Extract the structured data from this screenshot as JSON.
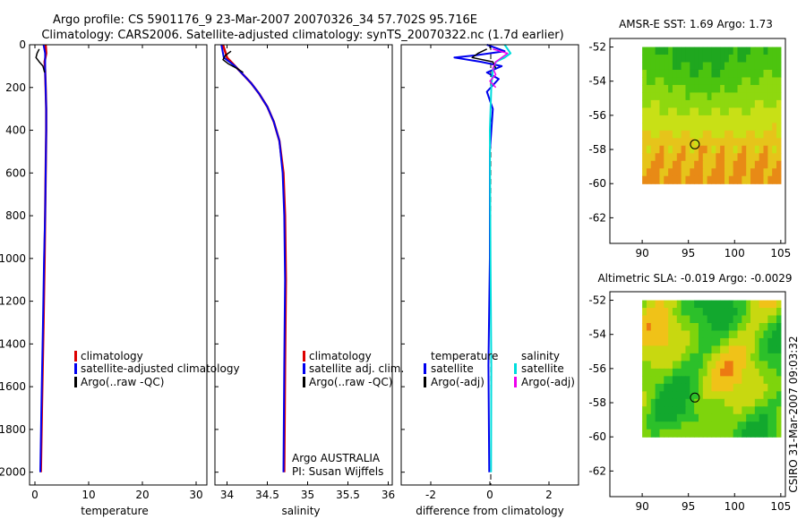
{
  "header": {
    "title_line1": "Argo profile: CS 5901176_9 23-Mar-2007 20070326_34 57.702S 95.716E",
    "title_line2": "Climatology: CARS2006. Satellite-adjusted climatology: synTS_20070322.nc (1.7d earlier)"
  },
  "chart_data": [
    {
      "id": "temperature",
      "type": "line",
      "xlabel": "temperature",
      "ylabel": "",
      "xlim": [
        -1,
        32
      ],
      "ylim": [
        2060,
        0
      ],
      "xticks": [
        0,
        10,
        20,
        30
      ],
      "yticks": [
        0,
        200,
        400,
        600,
        800,
        1000,
        1200,
        1400,
        1600,
        1800,
        2000
      ],
      "legend": [
        "climatology",
        "satellite-adjusted climatology",
        "Argo(..raw -QC)"
      ],
      "legend_colors": [
        "#dd0000",
        "#0000ee",
        "#000000"
      ],
      "series": [
        {
          "name": "climatology",
          "color": "#dd0000",
          "width": 2.5,
          "x": [
            2.0,
            2.1,
            1.8,
            1.9,
            2.0,
            2.1,
            2.1,
            2.0,
            1.9,
            1.8,
            1.6,
            1.3,
            1.1
          ],
          "y": [
            0,
            40,
            80,
            120,
            200,
            300,
            400,
            600,
            800,
            1000,
            1300,
            1700,
            2000
          ]
        },
        {
          "name": "satellite-adjusted climatology",
          "color": "#0000ee",
          "width": 2,
          "x": [
            1.6,
            1.9,
            1.9,
            1.9,
            2.0,
            2.1,
            2.1,
            2.0,
            1.9,
            1.7,
            1.5,
            1.2,
            1.0
          ],
          "y": [
            0,
            40,
            80,
            120,
            200,
            300,
            400,
            600,
            800,
            1000,
            1300,
            1700,
            2000
          ]
        },
        {
          "name": "Argo(..raw -QC)",
          "color": "#000000",
          "width": 1.5,
          "x": [
            0.8,
            0.4,
            0.2,
            0.8,
            1.5,
            1.8
          ],
          "y": [
            20,
            40,
            60,
            80,
            100,
            130
          ]
        }
      ]
    },
    {
      "id": "salinity",
      "type": "line",
      "xlabel": "salinity",
      "ylabel": "",
      "xlim": [
        33.85,
        36.05
      ],
      "ylim": [
        2060,
        0
      ],
      "xticks": [
        34,
        34.5,
        35,
        35.5,
        36
      ],
      "legend": [
        "climatology",
        "satellite adj. clim.",
        "Argo(..raw -QC)"
      ],
      "legend_colors": [
        "#dd0000",
        "#0000ee",
        "#000000"
      ],
      "annotations": [
        "Argo AUSTRALIA",
        "PI: Susan Wijffels"
      ],
      "series": [
        {
          "name": "climatology",
          "color": "#dd0000",
          "width": 2.5,
          "x": [
            33.95,
            34.0,
            34.1,
            34.2,
            34.3,
            34.4,
            34.5,
            34.58,
            34.65,
            34.7,
            34.72,
            34.73,
            34.72,
            34.71
          ],
          "y": [
            0,
            60,
            100,
            140,
            180,
            230,
            290,
            360,
            450,
            600,
            800,
            1100,
            1500,
            2000
          ]
        },
        {
          "name": "satellite adj. clim.",
          "color": "#0000ee",
          "width": 2,
          "x": [
            33.93,
            33.96,
            34.1,
            34.2,
            34.3,
            34.4,
            34.5,
            34.58,
            34.65,
            34.69,
            34.71,
            34.72,
            34.71,
            34.7
          ],
          "y": [
            0,
            60,
            100,
            140,
            180,
            230,
            290,
            360,
            450,
            600,
            800,
            1100,
            1500,
            2000
          ]
        },
        {
          "name": "Argo(..raw -QC)",
          "color": "#000000",
          "width": 1.5,
          "x": [
            34.05,
            33.98,
            33.95,
            34.02,
            34.12,
            34.2
          ],
          "y": [
            30,
            50,
            70,
            90,
            110,
            130
          ]
        }
      ]
    },
    {
      "id": "difference",
      "type": "line",
      "xlabel": "difference from climatology",
      "ylabel": "",
      "xlim": [
        -3.0,
        3.0
      ],
      "ylim": [
        2060,
        0
      ],
      "xticks": [
        -2,
        0,
        2
      ],
      "legend_left_title": "temperature",
      "legend_right_title": "salinity",
      "legend_left": [
        "satellite",
        "Argo(-adj)"
      ],
      "legend_left_colors": [
        "#0000ee",
        "#000000"
      ],
      "legend_right": [
        "satellite",
        "Argo(-adj)"
      ],
      "legend_right_colors": [
        "#00dddd",
        "#ee00ee"
      ],
      "series": [
        {
          "name": "temperature satellite",
          "color": "#0000ee",
          "width": 2,
          "x": [
            -0.1,
            0.5,
            -0.5,
            -1.2,
            -0.3,
            0.4,
            -0.1,
            0.3,
            -0.1,
            0.1,
            0.0,
            0.0,
            -0.05,
            -0.02
          ],
          "y": [
            0,
            30,
            50,
            60,
            80,
            100,
            130,
            160,
            220,
            300,
            500,
            1000,
            1500,
            2000
          ]
        },
        {
          "name": "salinity satellite",
          "color": "#00dddd",
          "width": 2,
          "x": [
            0.5,
            0.7,
            0.5,
            0.2,
            0.1,
            0.05,
            0.0,
            0.02,
            0.05,
            0.04
          ],
          "y": [
            0,
            40,
            60,
            80,
            120,
            200,
            400,
            1000,
            1500,
            2000
          ]
        },
        {
          "name": "temperature Argo(-adj)",
          "color": "#000000",
          "width": 1.5,
          "x": [
            -0.1,
            -0.4,
            -0.6,
            0.1,
            0.2
          ],
          "y": [
            20,
            40,
            60,
            80,
            110
          ]
        },
        {
          "name": "salinity Argo(-adj)",
          "color": "#ee00ee",
          "width": 1.5,
          "x": [
            0.1,
            0.6,
            0.4,
            0.2,
            0.1,
            0.2,
            0.0,
            0.2
          ],
          "y": [
            20,
            40,
            60,
            80,
            110,
            140,
            170,
            200
          ]
        }
      ]
    },
    {
      "id": "sst-map",
      "type": "heatmap",
      "title": "AMSR-E SST: 1.69 Argo: 1.73",
      "xlim": [
        86.5,
        105.5
      ],
      "ylim": [
        -63.5,
        -51.5
      ],
      "xticks": [
        90,
        95,
        100,
        105
      ],
      "yticks": [
        -52,
        -54,
        -56,
        -58,
        -60,
        -62
      ],
      "data_extent": {
        "lon": [
          90,
          105
        ],
        "lat": [
          -60,
          -52
        ]
      },
      "marker": {
        "lon": 95.7,
        "lat": -57.7
      },
      "palette": [
        "#1fa71f",
        "#4cc40f",
        "#8ed80f",
        "#c8e016",
        "#e6c41a",
        "#e88a16"
      ]
    },
    {
      "id": "sla-map",
      "type": "heatmap",
      "title": "Altimetric SLA: -0.019 Argo: -0.0029",
      "xlim": [
        86.5,
        105.5
      ],
      "ylim": [
        -63.5,
        -51.5
      ],
      "xticks": [
        90,
        95,
        100,
        105
      ],
      "yticks": [
        -52,
        -54,
        -56,
        -58,
        -60,
        -62
      ],
      "data_extent": {
        "lon": [
          90,
          105
        ],
        "lat": [
          -60,
          -52
        ]
      },
      "marker": {
        "lon": 95.7,
        "lat": -57.7
      },
      "palette": [
        "#12a82e",
        "#2cc02a",
        "#7ed40c",
        "#c8d810",
        "#f0c218",
        "#ec7a12"
      ]
    }
  ],
  "footer": {
    "credit": "CSIRO 31-Mar-2007 09:03:32"
  }
}
